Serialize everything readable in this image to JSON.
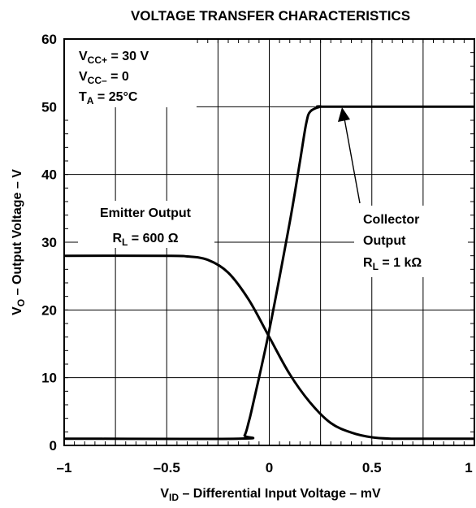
{
  "chart_data": {
    "type": "line",
    "title": "VOLTAGE TRANSFER CHARACTERISTICS",
    "xlabel": "V_ID – Differential Input Voltage – mV",
    "ylabel": "V_O – Output Voltage – V",
    "xlim": [
      -1,
      1
    ],
    "ylim": [
      0,
      60
    ],
    "x_ticks": [
      "–1",
      "–0.5",
      "0",
      "0.5",
      "1"
    ],
    "y_ticks": [
      "0",
      "10",
      "20",
      "30",
      "40",
      "50",
      "60"
    ],
    "grid": true,
    "conditions": [
      "V_CC+ = 30 V",
      "V_CC– = 0",
      "T_A = 25°C"
    ],
    "series": [
      {
        "name": "Emitter Output R_L = 600 Ω",
        "x": [
          -1.0,
          -0.5,
          -0.4,
          -0.3,
          -0.2,
          -0.1,
          0.0,
          0.1,
          0.2,
          0.3,
          0.4,
          0.5,
          0.6,
          0.7,
          1.0
        ],
        "y": [
          28,
          28,
          27.9,
          27.4,
          25.5,
          21.5,
          16.0,
          10.5,
          6.3,
          3.3,
          1.9,
          1.2,
          1.0,
          1.0,
          1.0
        ]
      },
      {
        "name": "Collector Output R_L = 1 kΩ",
        "x": [
          -1.0,
          -0.15,
          -0.12,
          -0.1,
          -0.08,
          0.0,
          0.1,
          0.15,
          0.18,
          0.2,
          0.25,
          0.3,
          1.0
        ],
        "y": [
          1.0,
          1.0,
          1.5,
          3.5,
          6.0,
          17.0,
          33.0,
          42.0,
          47.5,
          49.3,
          50.0,
          50.0,
          50.0
        ]
      }
    ],
    "annotations": {
      "emitter": [
        "Emitter Output",
        "R_L = 600 Ω"
      ],
      "collector": [
        "Collector",
        "Output",
        "R_L = 1 kΩ"
      ]
    }
  }
}
